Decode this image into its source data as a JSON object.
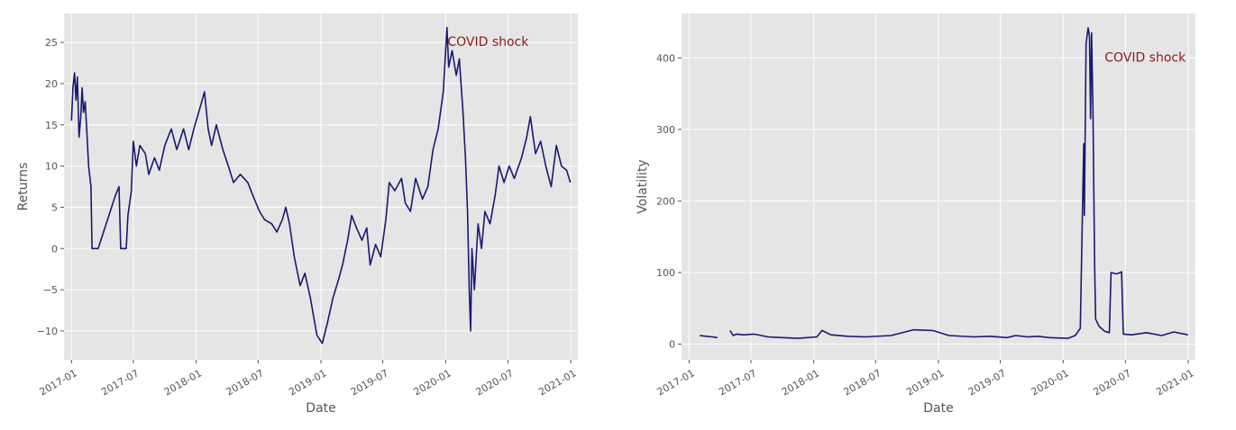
{
  "colors": {
    "series": "#191970",
    "annotation": "#8b1a1a",
    "plot_background": "#e5e5e5",
    "grid": "#ffffff",
    "text": "#555555"
  },
  "chart_data": [
    {
      "type": "line",
      "xlabel": "Date",
      "ylabel": "Returns",
      "xlim": [
        "2016-12-10",
        "2021-01-22"
      ],
      "ylim": [
        -13.5,
        28.5
      ],
      "x_ticks": [
        "2017-01",
        "2017-07",
        "2018-01",
        "2018-07",
        "2019-01",
        "2019-07",
        "2020-01",
        "2020-07",
        "2021-01"
      ],
      "y_ticks": [
        -10,
        -5,
        0,
        5,
        10,
        15,
        20,
        25
      ],
      "y_tick_labels": [
        "−10",
        "−5",
        "0",
        "5",
        "10",
        "15",
        "20",
        "25"
      ],
      "grid": true,
      "annotation": {
        "text": "COVID shock",
        "x": "2020-01-01",
        "y": 25
      },
      "series": [
        {
          "color": "#191970",
          "points": [
            [
              "2017-01-01",
              15.5
            ],
            [
              "2017-01-05",
              19.5
            ],
            [
              "2017-01-10",
              21.3
            ],
            [
              "2017-01-14",
              18.0
            ],
            [
              "2017-01-18",
              20.8
            ],
            [
              "2017-01-23",
              13.5
            ],
            [
              "2017-01-28",
              16.0
            ],
            [
              "2017-02-01",
              19.5
            ],
            [
              "2017-02-05",
              16.5
            ],
            [
              "2017-02-10",
              17.8
            ],
            [
              "2017-02-15",
              14.0
            ],
            [
              "2017-02-20",
              10.0
            ],
            [
              "2017-02-27",
              7.5
            ],
            [
              "2017-03-02",
              0.0
            ],
            [
              "2017-03-20",
              0.0
            ],
            [
              "2017-05-10",
              6.5
            ],
            [
              "2017-05-20",
              7.5
            ],
            [
              "2017-05-25",
              0.0
            ],
            [
              "2017-06-10",
              0.0
            ],
            [
              "2017-06-15",
              4.0
            ],
            [
              "2017-06-25",
              7.0
            ],
            [
              "2017-07-01",
              13.0
            ],
            [
              "2017-07-10",
              10.0
            ],
            [
              "2017-07-20",
              12.5
            ],
            [
              "2017-08-05",
              11.5
            ],
            [
              "2017-08-15",
              9.0
            ],
            [
              "2017-09-01",
              11.0
            ],
            [
              "2017-09-15",
              9.5
            ],
            [
              "2017-10-01",
              12.5
            ],
            [
              "2017-10-20",
              14.5
            ],
            [
              "2017-11-05",
              12.0
            ],
            [
              "2017-11-25",
              14.5
            ],
            [
              "2017-12-10",
              12.0
            ],
            [
              "2017-12-25",
              14.5
            ],
            [
              "2018-01-15",
              17.5
            ],
            [
              "2018-01-25",
              19.0
            ],
            [
              "2018-02-05",
              14.5
            ],
            [
              "2018-02-15",
              12.5
            ],
            [
              "2018-03-01",
              15.0
            ],
            [
              "2018-03-20",
              12.0
            ],
            [
              "2018-04-05",
              10.0
            ],
            [
              "2018-04-20",
              8.0
            ],
            [
              "2018-05-10",
              9.0
            ],
            [
              "2018-06-01",
              8.0
            ],
            [
              "2018-06-20",
              6.0
            ],
            [
              "2018-07-05",
              4.5
            ],
            [
              "2018-07-20",
              3.5
            ],
            [
              "2018-08-10",
              3.0
            ],
            [
              "2018-08-25",
              2.0
            ],
            [
              "2018-09-10",
              3.5
            ],
            [
              "2018-09-20",
              5.0
            ],
            [
              "2018-10-01",
              3.0
            ],
            [
              "2018-10-15",
              -1.0
            ],
            [
              "2018-11-01",
              -4.5
            ],
            [
              "2018-11-15",
              -3.0
            ],
            [
              "2018-12-01",
              -6.0
            ],
            [
              "2018-12-20",
              -10.5
            ],
            [
              "2019-01-05",
              -11.5
            ],
            [
              "2019-01-20",
              -9.0
            ],
            [
              "2019-02-05",
              -6.0
            ],
            [
              "2019-02-20",
              -4.0
            ],
            [
              "2019-03-05",
              -2.0
            ],
            [
              "2019-03-20",
              1.0
            ],
            [
              "2019-04-01",
              4.0
            ],
            [
              "2019-04-15",
              2.5
            ],
            [
              "2019-05-01",
              1.0
            ],
            [
              "2019-05-15",
              2.5
            ],
            [
              "2019-05-25",
              -2.0
            ],
            [
              "2019-06-10",
              0.5
            ],
            [
              "2019-06-25",
              -1.0
            ],
            [
              "2019-07-10",
              3.5
            ],
            [
              "2019-07-20",
              8.0
            ],
            [
              "2019-08-05",
              7.0
            ],
            [
              "2019-08-25",
              8.5
            ],
            [
              "2019-09-05",
              5.5
            ],
            [
              "2019-09-20",
              4.5
            ],
            [
              "2019-10-05",
              8.5
            ],
            [
              "2019-10-25",
              6.0
            ],
            [
              "2019-11-10",
              7.5
            ],
            [
              "2019-11-25",
              12.0
            ],
            [
              "2019-12-10",
              14.5
            ],
            [
              "2019-12-25",
              19.0
            ],
            [
              "2020-01-05",
              26.8
            ],
            [
              "2020-01-10",
              22.0
            ],
            [
              "2020-01-20",
              24.0
            ],
            [
              "2020-02-01",
              21.0
            ],
            [
              "2020-02-10",
              23.0
            ],
            [
              "2020-02-20",
              17.0
            ],
            [
              "2020-02-28",
              11.0
            ],
            [
              "2020-03-05",
              4.5
            ],
            [
              "2020-03-10",
              -5.0
            ],
            [
              "2020-03-14",
              -10.0
            ],
            [
              "2020-03-18",
              0.0
            ],
            [
              "2020-03-25",
              -5.0
            ],
            [
              "2020-04-05",
              3.0
            ],
            [
              "2020-04-15",
              0.0
            ],
            [
              "2020-04-25",
              4.5
            ],
            [
              "2020-05-10",
              3.0
            ],
            [
              "2020-05-25",
              6.5
            ],
            [
              "2020-06-05",
              10.0
            ],
            [
              "2020-06-20",
              8.0
            ],
            [
              "2020-07-05",
              10.0
            ],
            [
              "2020-07-20",
              8.5
            ],
            [
              "2020-08-10",
              11.0
            ],
            [
              "2020-08-25",
              13.5
            ],
            [
              "2020-09-05",
              16.0
            ],
            [
              "2020-09-20",
              11.5
            ],
            [
              "2020-10-05",
              13.0
            ],
            [
              "2020-10-20",
              10.0
            ],
            [
              "2020-11-05",
              7.5
            ],
            [
              "2020-11-20",
              12.5
            ],
            [
              "2020-12-05",
              10.0
            ],
            [
              "2020-12-20",
              9.5
            ],
            [
              "2020-12-31",
              8.0
            ]
          ]
        }
      ]
    },
    {
      "type": "line",
      "xlabel": "Date",
      "ylabel": "Volatility",
      "xlim": [
        "2016-12-10",
        "2021-01-22"
      ],
      "ylim": [
        -22,
        462
      ],
      "x_ticks": [
        "2017-01",
        "2017-07",
        "2018-01",
        "2018-07",
        "2019-01",
        "2019-07",
        "2020-01",
        "2020-07",
        "2021-01"
      ],
      "y_ticks": [
        0,
        100,
        200,
        300,
        400
      ],
      "y_tick_labels": [
        "0",
        "100",
        "200",
        "300",
        "400"
      ],
      "grid": true,
      "annotation": {
        "text": "COVID shock",
        "x": "2020-05-01",
        "y": 400
      },
      "series": [
        {
          "color": "#191970",
          "segments": [
            [
              [
                "2017-02-01",
                12
              ],
              [
                "2017-02-20",
                11
              ],
              [
                "2017-03-10",
                10
              ],
              [
                "2017-03-25",
                9
              ]
            ],
            [
              [
                "2017-05-01",
                19
              ],
              [
                "2017-05-10",
                12
              ],
              [
                "2017-05-20",
                14
              ],
              [
                "2017-06-10",
                13
              ],
              [
                "2017-07-10",
                14
              ],
              [
                "2017-08-20",
                10
              ],
              [
                "2017-10-01",
                9
              ],
              [
                "2017-11-15",
                8
              ],
              [
                "2018-01-10",
                10
              ],
              [
                "2018-01-25",
                19
              ],
              [
                "2018-02-20",
                13
              ],
              [
                "2018-04-10",
                11
              ],
              [
                "2018-06-01",
                10
              ],
              [
                "2018-08-15",
                12
              ],
              [
                "2018-10-20",
                20
              ],
              [
                "2018-12-15",
                19
              ],
              [
                "2019-02-01",
                12
              ],
              [
                "2019-04-15",
                10
              ],
              [
                "2019-06-01",
                11
              ],
              [
                "2019-07-20",
                9
              ],
              [
                "2019-08-15",
                12
              ],
              [
                "2019-09-20",
                10
              ],
              [
                "2019-10-20",
                11
              ],
              [
                "2019-11-20",
                9
              ],
              [
                "2020-01-15",
                8
              ],
              [
                "2020-02-05",
                12
              ],
              [
                "2020-02-20",
                22
              ],
              [
                "2020-03-01",
                280
              ],
              [
                "2020-03-03",
                180
              ],
              [
                "2020-03-08",
                420
              ],
              [
                "2020-03-14",
                442
              ],
              [
                "2020-03-18",
                430
              ],
              [
                "2020-03-21",
                315
              ],
              [
                "2020-03-24",
                435
              ],
              [
                "2020-03-28",
                330
              ],
              [
                "2020-04-02",
                110
              ],
              [
                "2020-04-05",
                35
              ],
              [
                "2020-04-15",
                25
              ],
              [
                "2020-05-01",
                18
              ],
              [
                "2020-05-15",
                16
              ],
              [
                "2020-05-20",
                100
              ],
              [
                "2020-06-05",
                98
              ],
              [
                "2020-06-20",
                101
              ],
              [
                "2020-06-25",
                14
              ],
              [
                "2020-07-20",
                13
              ],
              [
                "2020-09-01",
                16
              ],
              [
                "2020-10-15",
                12
              ],
              [
                "2020-11-20",
                17
              ],
              [
                "2020-12-10",
                15
              ],
              [
                "2020-12-31",
                13
              ]
            ]
          ]
        }
      ]
    }
  ]
}
